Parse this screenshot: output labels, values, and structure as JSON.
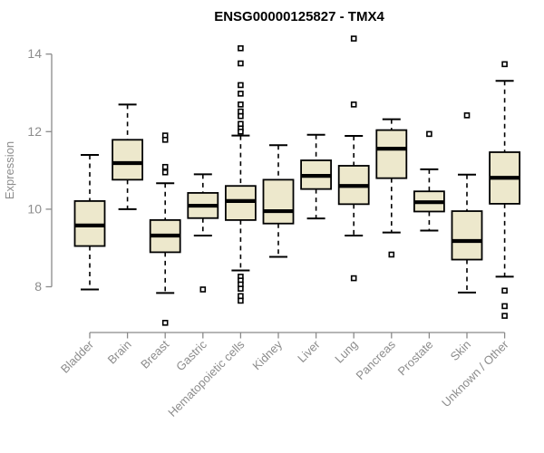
{
  "chart_data": {
    "type": "boxplot",
    "title": "ENSG00000125827 - TMX4",
    "ylabel": "Expression",
    "yticks": [
      8,
      10,
      12,
      14
    ],
    "ylim": [
      6.8,
      14.6
    ],
    "grid": false,
    "legend": "none",
    "categories": [
      "Bladder",
      "Brain",
      "Breast",
      "Gastric",
      "Hematopoietic cells",
      "Kidney",
      "Liver",
      "Lung",
      "Pancreas",
      "Prostate",
      "Skin",
      "Unknown / Other"
    ],
    "boxes": [
      {
        "category": "Bladder",
        "low": 7.93,
        "q1": 9.05,
        "median": 9.58,
        "q3": 10.21,
        "high": 11.4,
        "outliers": []
      },
      {
        "category": "Brain",
        "low": 10.0,
        "q1": 10.76,
        "median": 11.19,
        "q3": 11.79,
        "high": 12.7,
        "outliers": []
      },
      {
        "category": "Breast",
        "low": 7.84,
        "q1": 8.89,
        "median": 9.32,
        "q3": 9.72,
        "high": 10.67,
        "outliers": [
          11.9,
          11.79,
          11.09,
          10.95,
          7.07
        ]
      },
      {
        "category": "Gastric",
        "low": 9.32,
        "q1": 9.77,
        "median": 10.09,
        "q3": 10.42,
        "high": 10.9,
        "outliers": [
          7.93
        ]
      },
      {
        "category": "Hematopoietic cells",
        "low": 8.42,
        "q1": 9.72,
        "median": 10.21,
        "q3": 10.6,
        "high": 11.9,
        "outliers": [
          14.15,
          13.76,
          13.2,
          12.98,
          12.7,
          12.52,
          12.4,
          12.2,
          12.08,
          12.0,
          8.26,
          8.16,
          8.06,
          7.95,
          7.76,
          7.64
        ]
      },
      {
        "category": "Kidney",
        "low": 8.77,
        "q1": 9.63,
        "median": 9.95,
        "q3": 10.76,
        "high": 11.65,
        "outliers": []
      },
      {
        "category": "Liver",
        "low": 9.76,
        "q1": 10.52,
        "median": 10.86,
        "q3": 11.26,
        "high": 11.92,
        "outliers": []
      },
      {
        "category": "Lung",
        "low": 9.32,
        "q1": 10.13,
        "median": 10.6,
        "q3": 11.12,
        "high": 11.89,
        "outliers": [
          14.4,
          12.7,
          8.22
        ]
      },
      {
        "category": "Pancreas",
        "low": 9.4,
        "q1": 10.8,
        "median": 11.56,
        "q3": 12.04,
        "high": 12.32,
        "outliers": [
          8.83
        ]
      },
      {
        "category": "Prostate",
        "low": 9.45,
        "q1": 9.94,
        "median": 10.18,
        "q3": 10.46,
        "high": 11.03,
        "outliers": [
          11.94
        ]
      },
      {
        "category": "Skin",
        "low": 7.85,
        "q1": 8.7,
        "median": 9.18,
        "q3": 9.95,
        "high": 10.89,
        "outliers": [
          12.42
        ]
      },
      {
        "category": "Unknown / Other",
        "low": 8.26,
        "q1": 10.14,
        "median": 10.81,
        "q3": 11.47,
        "high": 13.31,
        "outliers": [
          13.74,
          7.9,
          7.5,
          7.25
        ]
      }
    ],
    "colors": {
      "box_fill": "#EDE8CC",
      "box_stroke": "#000000",
      "median": "#000000",
      "whisker": "#000000",
      "outlier": "#000000",
      "axis": "#8A8A8A",
      "tick_label": "#8C8C8C",
      "title": "#000000",
      "background": "#FFFFFF"
    }
  }
}
